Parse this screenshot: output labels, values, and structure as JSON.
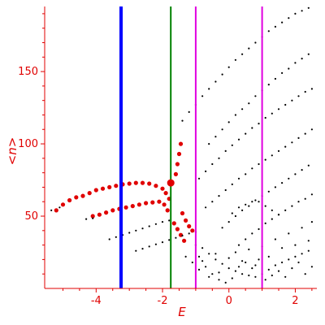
{
  "chart_data": {
    "type": "scatter",
    "title": "",
    "xlabel": "E",
    "ylabel": "<n>",
    "xlim": [
      -5.55,
      2.65
    ],
    "ylim": [
      0,
      195
    ],
    "x_ticks": [
      -4,
      -2,
      0,
      2
    ],
    "y_ticks": [
      50,
      100,
      150
    ],
    "x_tick_labels": [
      "-4",
      "-2",
      "0",
      "2"
    ],
    "y_tick_labels": [
      "50",
      "100",
      "150"
    ],
    "grid": false,
    "axis_color": "#e00000",
    "vertical_lines": [
      {
        "x": -3.25,
        "color": "#0000ff",
        "style": "thick"
      },
      {
        "x": -1.75,
        "color": "#008000",
        "style": "thin"
      },
      {
        "x": -1.0,
        "color": "#e000e0",
        "style": "thin"
      },
      {
        "x": 1.0,
        "color": "#e000e0",
        "style": "thin"
      }
    ],
    "series": [
      {
        "color": "#e00000",
        "size": "large",
        "points": [
          [
            -5.2,
            54
          ],
          [
            -5.0,
            58
          ],
          [
            -4.8,
            61
          ],
          [
            -4.6,
            63
          ],
          [
            -4.4,
            64
          ],
          [
            -4.2,
            66
          ],
          [
            -4.0,
            68
          ],
          [
            -3.8,
            69
          ],
          [
            -3.6,
            70
          ],
          [
            -3.4,
            71
          ],
          [
            -3.2,
            72
          ],
          [
            -3.0,
            72.5
          ],
          [
            -2.8,
            73
          ],
          [
            -2.6,
            73
          ],
          [
            -2.4,
            72.5
          ],
          [
            -2.2,
            71
          ],
          [
            -2.0,
            69
          ],
          [
            -1.9,
            66
          ],
          [
            -1.8,
            62
          ],
          [
            -4.1,
            50
          ],
          [
            -3.9,
            51
          ],
          [
            -3.7,
            52.5
          ],
          [
            -3.5,
            54
          ],
          [
            -3.3,
            55
          ],
          [
            -3.1,
            56
          ],
          [
            -2.9,
            57
          ],
          [
            -2.7,
            58
          ],
          [
            -2.5,
            59
          ],
          [
            -2.3,
            59.5
          ],
          [
            -2.1,
            60
          ],
          [
            -1.95,
            58
          ],
          [
            -1.85,
            54
          ],
          [
            -1.6,
            79
          ],
          [
            -1.55,
            86
          ],
          [
            -1.5,
            93
          ],
          [
            -1.45,
            100
          ],
          [
            -1.65,
            45
          ],
          [
            -1.55,
            41
          ],
          [
            -1.45,
            37
          ],
          [
            -1.35,
            33
          ],
          [
            -1.4,
            52
          ],
          [
            -1.3,
            47
          ],
          [
            -1.2,
            43
          ],
          [
            -1.1,
            40
          ]
        ]
      },
      {
        "color": "#000000",
        "size": "small",
        "points": [
          [
            -5.35,
            54
          ],
          [
            -5.1,
            56
          ],
          [
            -4.3,
            48
          ],
          [
            -4.1,
            48.5
          ],
          [
            -3.6,
            34
          ],
          [
            -3.4,
            35.5
          ],
          [
            -3.2,
            37
          ],
          [
            -3.0,
            38.5
          ],
          [
            -2.8,
            40
          ],
          [
            -2.6,
            41.5
          ],
          [
            -2.4,
            43
          ],
          [
            -2.2,
            44.5
          ],
          [
            -2.0,
            46
          ],
          [
            -1.8,
            47
          ],
          [
            -2.8,
            26
          ],
          [
            -2.6,
            27.5
          ],
          [
            -2.4,
            29
          ],
          [
            -2.2,
            30.5
          ],
          [
            -2.0,
            32
          ],
          [
            -1.8,
            33.5
          ],
          [
            -1.6,
            35
          ],
          [
            -1.4,
            36.5
          ],
          [
            -1.2,
            38
          ],
          [
            -1.0,
            39
          ],
          [
            -1.4,
            116
          ],
          [
            -1.2,
            122
          ],
          [
            -1.0,
            127
          ],
          [
            -0.8,
            133
          ],
          [
            -0.6,
            138
          ],
          [
            -0.4,
            143
          ],
          [
            -0.2,
            148
          ],
          [
            0.0,
            153
          ],
          [
            0.2,
            158
          ],
          [
            0.4,
            162
          ],
          [
            0.6,
            166
          ],
          [
            0.8,
            170
          ],
          [
            1.0,
            174
          ],
          [
            1.2,
            178
          ],
          [
            1.4,
            181
          ],
          [
            1.6,
            184
          ],
          [
            1.8,
            187
          ],
          [
            2.0,
            190
          ],
          [
            2.2,
            192
          ],
          [
            2.4,
            194
          ],
          [
            -0.6,
            100
          ],
          [
            -0.4,
            105
          ],
          [
            -0.2,
            110
          ],
          [
            0.0,
            115
          ],
          [
            0.2,
            120
          ],
          [
            0.4,
            124
          ],
          [
            0.6,
            128
          ],
          [
            0.8,
            133
          ],
          [
            1.0,
            137
          ],
          [
            1.2,
            141
          ],
          [
            1.4,
            145
          ],
          [
            1.6,
            149
          ],
          [
            1.8,
            152
          ],
          [
            2.0,
            156
          ],
          [
            2.2,
            159
          ],
          [
            2.4,
            162
          ],
          [
            -0.9,
            76
          ],
          [
            -0.7,
            81
          ],
          [
            -0.5,
            86
          ],
          [
            -0.3,
            90
          ],
          [
            -0.1,
            95
          ],
          [
            0.1,
            99
          ],
          [
            0.3,
            103
          ],
          [
            0.5,
            107
          ],
          [
            0.7,
            111
          ],
          [
            0.9,
            114
          ],
          [
            1.1,
            118
          ],
          [
            1.3,
            121
          ],
          [
            1.5,
            124
          ],
          [
            1.7,
            127
          ],
          [
            1.9,
            130
          ],
          [
            2.1,
            133
          ],
          [
            2.3,
            136
          ],
          [
            2.5,
            138
          ],
          [
            -0.7,
            56
          ],
          [
            -0.5,
            60
          ],
          [
            -0.3,
            64
          ],
          [
            -0.1,
            68
          ],
          [
            0.1,
            72
          ],
          [
            0.3,
            76
          ],
          [
            0.5,
            79
          ],
          [
            0.7,
            83
          ],
          [
            0.9,
            86
          ],
          [
            1.1,
            89
          ],
          [
            1.3,
            92
          ],
          [
            1.5,
            95
          ],
          [
            1.7,
            98
          ],
          [
            1.9,
            101
          ],
          [
            2.1,
            104
          ],
          [
            2.3,
            107
          ],
          [
            2.5,
            110
          ],
          [
            -0.2,
            42
          ],
          [
            0.0,
            46
          ],
          [
            0.2,
            50
          ],
          [
            0.4,
            54
          ],
          [
            0.6,
            57
          ],
          [
            0.8,
            61
          ],
          [
            1.0,
            64
          ],
          [
            1.2,
            67
          ],
          [
            1.4,
            70
          ],
          [
            1.6,
            73
          ],
          [
            1.8,
            76
          ],
          [
            2.0,
            79
          ],
          [
            2.2,
            82
          ],
          [
            2.4,
            85
          ],
          [
            0.3,
            30
          ],
          [
            0.5,
            34
          ],
          [
            0.7,
            38
          ],
          [
            0.9,
            41
          ],
          [
            1.1,
            45
          ],
          [
            1.3,
            48
          ],
          [
            1.5,
            51
          ],
          [
            1.7,
            54
          ],
          [
            1.9,
            57
          ],
          [
            2.1,
            60
          ],
          [
            2.3,
            62
          ],
          [
            2.5,
            65
          ],
          [
            0.1,
            52
          ],
          [
            0.3,
            56
          ],
          [
            0.5,
            58
          ],
          [
            0.7,
            60
          ],
          [
            0.9,
            60
          ],
          [
            1.1,
            57
          ],
          [
            1.3,
            54
          ],
          [
            1.5,
            51
          ],
          [
            -1.0,
            30
          ],
          [
            -0.8,
            28
          ],
          [
            -0.6,
            24
          ],
          [
            -0.4,
            20
          ],
          [
            -0.2,
            17
          ],
          [
            0.0,
            14
          ],
          [
            0.2,
            12
          ],
          [
            0.4,
            10
          ],
          [
            0.6,
            9
          ],
          [
            0.8,
            8
          ],
          [
            1.0,
            10
          ],
          [
            1.2,
            13
          ],
          [
            1.4,
            16
          ],
          [
            1.6,
            18
          ],
          [
            1.8,
            20
          ],
          [
            2.0,
            22
          ],
          [
            2.2,
            24
          ],
          [
            2.4,
            26
          ],
          [
            -0.9,
            22
          ],
          [
            -0.7,
            15
          ],
          [
            -0.5,
            10
          ],
          [
            -0.3,
            6
          ],
          [
            -0.1,
            4
          ],
          [
            0.1,
            7
          ],
          [
            0.3,
            15
          ],
          [
            0.5,
            18
          ],
          [
            0.7,
            14
          ],
          [
            0.9,
            20
          ],
          [
            1.1,
            6
          ],
          [
            1.3,
            9
          ],
          [
            1.5,
            12
          ],
          [
            1.7,
            8
          ],
          [
            1.9,
            14
          ],
          [
            2.1,
            18
          ],
          [
            2.3,
            10
          ],
          [
            2.5,
            15
          ],
          [
            -0.8,
            19
          ],
          [
            -0.4,
            24
          ],
          [
            0.0,
            21
          ],
          [
            0.4,
            19
          ],
          [
            0.8,
            16
          ],
          [
            1.2,
            22
          ],
          [
            1.6,
            28
          ],
          [
            2.0,
            30
          ],
          [
            2.4,
            33
          ],
          [
            -1.3,
            22
          ],
          [
            -1.1,
            18
          ],
          [
            -0.9,
            13
          ],
          [
            -0.6,
            8
          ],
          [
            -0.3,
            11
          ],
          [
            0.2,
            25
          ],
          [
            0.6,
            27
          ],
          [
            1.0,
            29
          ],
          [
            1.4,
            34
          ],
          [
            1.8,
            38
          ],
          [
            2.2,
            42
          ],
          [
            2.5,
            46
          ]
        ]
      }
    ],
    "highlight_point": {
      "x": -1.75,
      "y": 73,
      "color": "#e00000"
    }
  }
}
